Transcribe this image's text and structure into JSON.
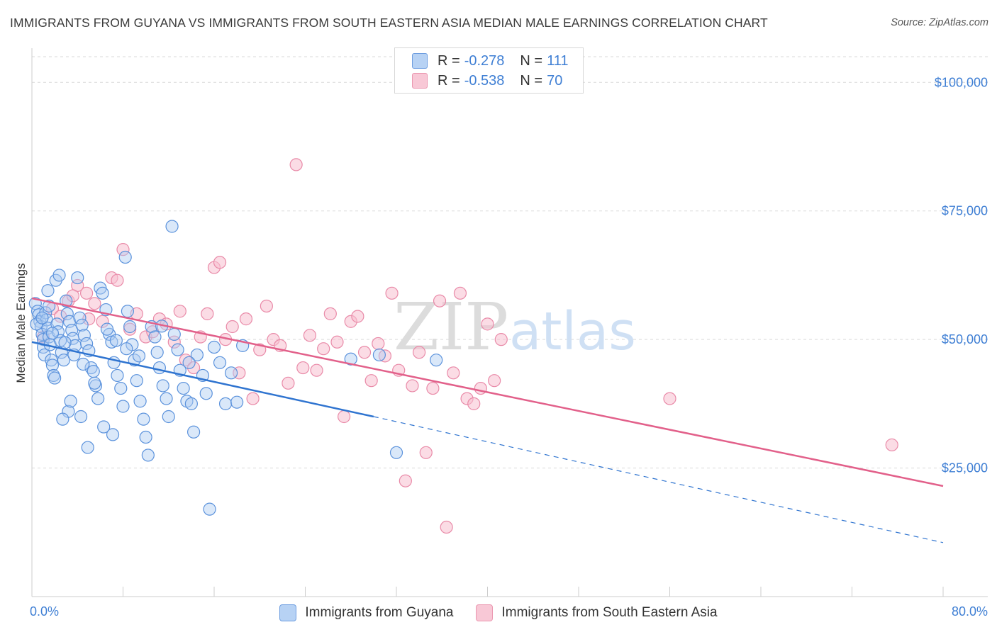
{
  "title": "IMMIGRANTS FROM GUYANA VS IMMIGRANTS FROM SOUTH EASTERN ASIA MEDIAN MALE EARNINGS CORRELATION CHART",
  "source": "Source: ZipAtlas.com",
  "watermark": "ZIPatlas",
  "legend": {
    "series1": {
      "r_label": "R =",
      "r_value": "-0.278",
      "n_label": "N =",
      "n_value": "111"
    },
    "series2": {
      "r_label": "R =",
      "r_value": "-0.538",
      "n_label": "N =",
      "n_value": "70"
    }
  },
  "bottom_legend": {
    "series1": "Immigrants from Guyana",
    "series2": "Immigrants from South Eastern Asia"
  },
  "colors": {
    "series1_fill": "#aecbf2",
    "series1_stroke": "#5b92dc",
    "series1_line": "#2f74d0",
    "series2_fill": "#f7bfd0",
    "series2_stroke": "#e98aa8",
    "series2_line": "#e2608a",
    "axis_text": "#3f7fd4",
    "grid": "#d9d9d9"
  },
  "chart_data": {
    "type": "scatter",
    "title": "IMMIGRANTS FROM GUYANA VS IMMIGRANTS FROM SOUTH EASTERN ASIA MEDIAN MALE EARNINGS CORRELATION CHART",
    "xlabel": "",
    "ylabel": "Median Male Earnings",
    "xlim": [
      0,
      80
    ],
    "ylim": [
      0,
      105000
    ],
    "x_tick_labels": [
      "0.0%",
      "80.0%"
    ],
    "y_ticks": [
      25000,
      50000,
      75000,
      100000
    ],
    "y_tick_labels": [
      "$25,000",
      "$50,000",
      "$75,000",
      "$100,000"
    ],
    "grid": true,
    "legend_position": "top-center",
    "series": [
      {
        "name": "Immigrants from Guyana",
        "R": -0.278,
        "N": 111,
        "trend": {
          "x0": 0,
          "y0": 49500,
          "x1": 30,
          "y1": 35000,
          "dashed_to_x": 80,
          "dashed_to_y": 10500
        },
        "points": [
          [
            0.3,
            57000
          ],
          [
            0.5,
            55500
          ],
          [
            0.6,
            54800
          ],
          [
            0.7,
            53500
          ],
          [
            0.8,
            52500
          ],
          [
            0.9,
            51000
          ],
          [
            1.0,
            50000
          ],
          [
            1.0,
            48500
          ],
          [
            1.1,
            47000
          ],
          [
            1.2,
            55200
          ],
          [
            1.3,
            53800
          ],
          [
            1.4,
            52200
          ],
          [
            1.5,
            50500
          ],
          [
            1.6,
            49000
          ],
          [
            1.7,
            46000
          ],
          [
            1.8,
            45000
          ],
          [
            1.9,
            43000
          ],
          [
            2.0,
            42500
          ],
          [
            1.5,
            56500
          ],
          [
            2.2,
            53000
          ],
          [
            2.3,
            51500
          ],
          [
            2.5,
            49800
          ],
          [
            2.6,
            47500
          ],
          [
            2.8,
            46000
          ],
          [
            3.0,
            57500
          ],
          [
            3.1,
            55000
          ],
          [
            3.3,
            53500
          ],
          [
            3.5,
            51800
          ],
          [
            3.6,
            50200
          ],
          [
            3.8,
            48800
          ],
          [
            4.0,
            62000
          ],
          [
            4.2,
            54200
          ],
          [
            4.4,
            52800
          ],
          [
            4.6,
            50800
          ],
          [
            4.8,
            49200
          ],
          [
            5.0,
            47800
          ],
          [
            5.2,
            44500
          ],
          [
            5.4,
            43800
          ],
          [
            5.6,
            41000
          ],
          [
            5.8,
            38500
          ],
          [
            6.0,
            60000
          ],
          [
            6.2,
            59000
          ],
          [
            6.5,
            55800
          ],
          [
            6.8,
            51000
          ],
          [
            7.0,
            49500
          ],
          [
            7.2,
            45500
          ],
          [
            7.5,
            43000
          ],
          [
            7.8,
            40500
          ],
          [
            8.0,
            37000
          ],
          [
            8.2,
            66000
          ],
          [
            8.4,
            55500
          ],
          [
            8.6,
            52500
          ],
          [
            8.8,
            49000
          ],
          [
            9.0,
            46000
          ],
          [
            9.2,
            42000
          ],
          [
            9.5,
            38000
          ],
          [
            9.8,
            34500
          ],
          [
            10.0,
            31000
          ],
          [
            10.2,
            27500
          ],
          [
            10.5,
            52500
          ],
          [
            10.8,
            50500
          ],
          [
            11.0,
            47500
          ],
          [
            11.2,
            44500
          ],
          [
            11.5,
            41000
          ],
          [
            11.8,
            38500
          ],
          [
            12.0,
            35000
          ],
          [
            12.3,
            72000
          ],
          [
            12.5,
            51000
          ],
          [
            12.8,
            48000
          ],
          [
            13.0,
            44000
          ],
          [
            13.3,
            40500
          ],
          [
            13.6,
            38000
          ],
          [
            14.0,
            37500
          ],
          [
            14.2,
            32000
          ],
          [
            14.5,
            47000
          ],
          [
            15.0,
            43000
          ],
          [
            15.3,
            39500
          ],
          [
            15.6,
            17000
          ],
          [
            16.0,
            48500
          ],
          [
            16.5,
            45500
          ],
          [
            17.0,
            37500
          ],
          [
            17.5,
            43500
          ],
          [
            18.0,
            37800
          ],
          [
            2.1,
            61500
          ],
          [
            2.4,
            62500
          ],
          [
            3.2,
            36000
          ],
          [
            3.4,
            38000
          ],
          [
            2.7,
            34500
          ],
          [
            4.3,
            35000
          ],
          [
            4.9,
            29000
          ],
          [
            5.5,
            41500
          ],
          [
            6.3,
            33000
          ],
          [
            7.1,
            31500
          ],
          [
            1.4,
            59500
          ],
          [
            0.4,
            53000
          ],
          [
            0.9,
            54200
          ],
          [
            1.8,
            51200
          ],
          [
            2.9,
            49400
          ],
          [
            3.7,
            47000
          ],
          [
            4.5,
            45200
          ],
          [
            6.6,
            52000
          ],
          [
            7.4,
            49800
          ],
          [
            8.3,
            48200
          ],
          [
            9.4,
            46800
          ],
          [
            11.4,
            52600
          ],
          [
            13.8,
            45500
          ],
          [
            18.5,
            48800
          ],
          [
            28.0,
            46200
          ],
          [
            30.5,
            47000
          ],
          [
            32.0,
            28000
          ],
          [
            35.5,
            46000
          ]
        ]
      },
      {
        "name": "Immigrants from South Eastern Asia",
        "R": -0.538,
        "N": 70,
        "trend": {
          "x0": 0,
          "y0": 58000,
          "x1": 80,
          "y1": 21500
        },
        "points": [
          [
            1.0,
            50500
          ],
          [
            1.8,
            56000
          ],
          [
            2.5,
            54500
          ],
          [
            3.2,
            57500
          ],
          [
            4.0,
            60500
          ],
          [
            4.8,
            59000
          ],
          [
            5.5,
            57000
          ],
          [
            6.2,
            53500
          ],
          [
            7.0,
            62000
          ],
          [
            7.5,
            61500
          ],
          [
            8.0,
            67500
          ],
          [
            8.6,
            52000
          ],
          [
            9.2,
            55000
          ],
          [
            10.0,
            50500
          ],
          [
            10.6,
            51500
          ],
          [
            11.2,
            54000
          ],
          [
            11.8,
            53000
          ],
          [
            12.5,
            49500
          ],
          [
            13.0,
            55500
          ],
          [
            13.5,
            46000
          ],
          [
            14.2,
            44500
          ],
          [
            14.8,
            50500
          ],
          [
            15.4,
            55000
          ],
          [
            16.0,
            64000
          ],
          [
            16.5,
            65000
          ],
          [
            17.0,
            50000
          ],
          [
            17.6,
            52500
          ],
          [
            18.2,
            43500
          ],
          [
            18.8,
            54000
          ],
          [
            19.4,
            38500
          ],
          [
            20.0,
            48000
          ],
          [
            20.6,
            56500
          ],
          [
            21.2,
            50000
          ],
          [
            21.8,
            48800
          ],
          [
            22.5,
            41500
          ],
          [
            23.2,
            84000
          ],
          [
            23.8,
            44500
          ],
          [
            24.4,
            50800
          ],
          [
            25.0,
            44000
          ],
          [
            25.6,
            48200
          ],
          [
            26.2,
            55000
          ],
          [
            26.8,
            49500
          ],
          [
            27.4,
            35000
          ],
          [
            28.0,
            53500
          ],
          [
            28.6,
            54500
          ],
          [
            29.2,
            47500
          ],
          [
            29.8,
            42000
          ],
          [
            30.4,
            49200
          ],
          [
            31.0,
            46800
          ],
          [
            31.6,
            59000
          ],
          [
            32.2,
            44000
          ],
          [
            32.8,
            22500
          ],
          [
            33.4,
            41000
          ],
          [
            34.0,
            47500
          ],
          [
            34.6,
            28000
          ],
          [
            35.2,
            40500
          ],
          [
            35.8,
            57500
          ],
          [
            36.4,
            13500
          ],
          [
            37.0,
            43500
          ],
          [
            37.6,
            59000
          ],
          [
            38.2,
            38500
          ],
          [
            38.8,
            37500
          ],
          [
            39.4,
            40500
          ],
          [
            40.0,
            53000
          ],
          [
            40.6,
            42000
          ],
          [
            41.2,
            50000
          ],
          [
            3.6,
            58500
          ],
          [
            5.0,
            54000
          ],
          [
            56.0,
            38500
          ],
          [
            75.5,
            29500
          ]
        ]
      }
    ]
  }
}
